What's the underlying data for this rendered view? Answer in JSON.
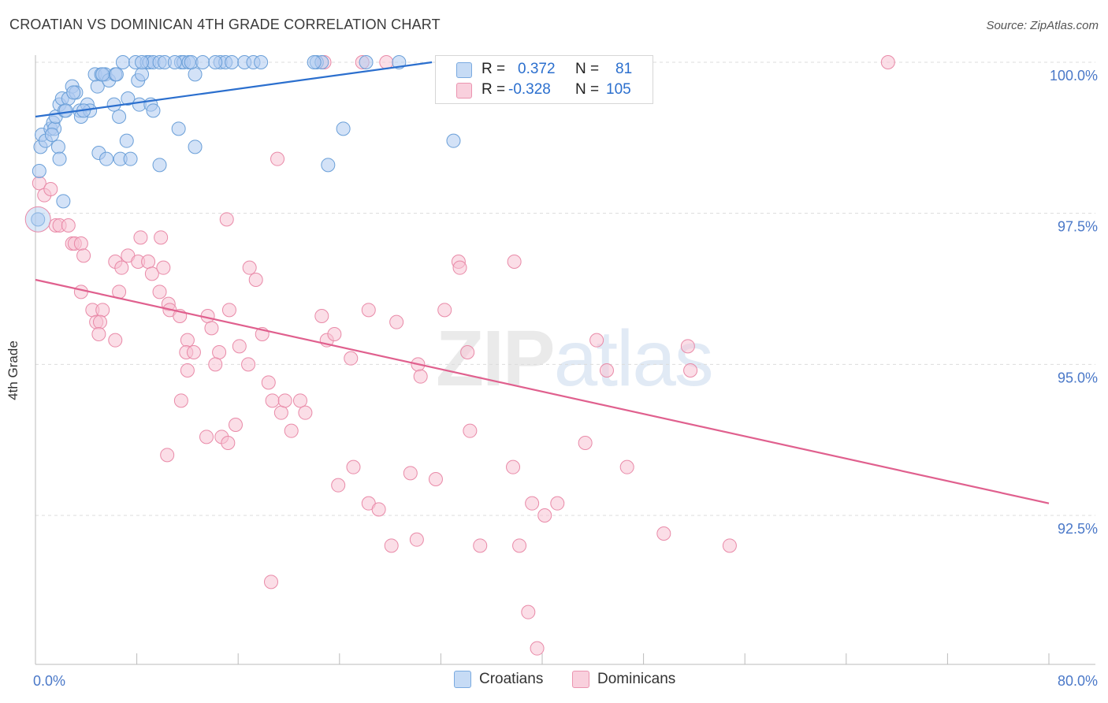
{
  "header": {
    "title": "CROATIAN VS DOMINICAN 4TH GRADE CORRELATION CHART",
    "source": "Source: ZipAtlas.com"
  },
  "watermark": {
    "zip": "ZIP",
    "atlas": "atlas"
  },
  "legend_box": {
    "rows": [
      {
        "r_label": "R =",
        "r_value": "0.372",
        "n_label": "N =",
        "n_value": "81"
      },
      {
        "r_label": "R =",
        "r_value": "-0.328",
        "n_label": "N =",
        "n_value": "105"
      }
    ]
  },
  "bottom_legend": {
    "items": [
      "Croatians",
      "Dominicans"
    ]
  },
  "colors": {
    "croatians_fill": "#aecbf0",
    "croatians_stroke": "#6a9fd8",
    "croatians_line": "#2b6fce",
    "dominicans_fill": "#f7c3d3",
    "dominicans_stroke": "#e98aa8",
    "dominicans_line": "#e0608e",
    "tick_label": "#4a78c8",
    "grid": "#dcdcdc"
  },
  "chart_data": {
    "type": "scatter",
    "title": "CROATIAN VS DOMINICAN 4TH GRADE CORRELATION CHART",
    "xlabel": "",
    "ylabel": "4th Grade",
    "xlim": [
      0,
      80
    ],
    "ylim": [
      90.0,
      100.3
    ],
    "x_tick_labels": [
      "0.0%",
      "80.0%"
    ],
    "y_ticks": [
      92.5,
      95.0,
      97.5,
      100.0
    ],
    "y_tick_labels": [
      "92.5%",
      "95.0%",
      "97.5%",
      "100.0%"
    ],
    "grid": true,
    "legend_position": "top-center",
    "series": [
      {
        "name": "Croatians",
        "r": 0.372,
        "n": 81,
        "trend": {
          "x": [
            0,
            31.3
          ],
          "y": [
            99.1,
            100.0
          ]
        },
        "points": [
          [
            0.2,
            97.4
          ],
          [
            0.3,
            98.2
          ],
          [
            0.4,
            98.6
          ],
          [
            0.5,
            98.8
          ],
          [
            0.8,
            98.7
          ],
          [
            1.2,
            98.9
          ],
          [
            1.4,
            99.0
          ],
          [
            1.5,
            98.9
          ],
          [
            1.6,
            99.1
          ],
          [
            1.8,
            98.6
          ],
          [
            1.9,
            98.4
          ],
          [
            2.2,
            97.7
          ],
          [
            1.9,
            99.3
          ],
          [
            2.3,
            99.2
          ],
          [
            2.1,
            99.4
          ],
          [
            2.6,
            99.4
          ],
          [
            2.9,
            99.6
          ],
          [
            3.2,
            99.5
          ],
          [
            3.5,
            99.2
          ],
          [
            3.6,
            99.1
          ],
          [
            4.1,
            99.3
          ],
          [
            4.3,
            99.2
          ],
          [
            4.9,
            99.6
          ],
          [
            5.0,
            98.5
          ],
          [
            5.6,
            98.4
          ],
          [
            4.7,
            99.8
          ],
          [
            5.2,
            99.8
          ],
          [
            5.5,
            99.8
          ],
          [
            5.8,
            99.7
          ],
          [
            6.3,
            99.8
          ],
          [
            6.4,
            99.8
          ],
          [
            7.3,
            99.4
          ],
          [
            8.2,
            99.3
          ],
          [
            8.1,
            99.7
          ],
          [
            8.4,
            99.8
          ],
          [
            9.1,
            99.3
          ],
          [
            9.3,
            99.2
          ],
          [
            6.6,
            99.1
          ],
          [
            6.2,
            99.3
          ],
          [
            7.2,
            98.7
          ],
          [
            6.7,
            98.4
          ],
          [
            7.5,
            98.4
          ],
          [
            9.8,
            98.3
          ],
          [
            11.3,
            98.9
          ],
          [
            12.6,
            98.6
          ],
          [
            12.6,
            99.8
          ],
          [
            6.9,
            100.0
          ],
          [
            7.9,
            100.0
          ],
          [
            8.8,
            100.0
          ],
          [
            9.0,
            100.0
          ],
          [
            9.3,
            100.0
          ],
          [
            9.8,
            100.0
          ],
          [
            10.2,
            100.0
          ],
          [
            11.5,
            100.0
          ],
          [
            11.7,
            100.0
          ],
          [
            12.1,
            100.0
          ],
          [
            12.3,
            100.0
          ],
          [
            13.2,
            100.0
          ],
          [
            14.6,
            100.0
          ],
          [
            15.0,
            100.0
          ],
          [
            15.5,
            100.0
          ],
          [
            16.5,
            100.0
          ],
          [
            17.2,
            100.0
          ],
          [
            17.8,
            100.0
          ],
          [
            22.2,
            100.0
          ],
          [
            22.6,
            100.0
          ],
          [
            26.1,
            100.0
          ],
          [
            28.7,
            100.0
          ],
          [
            24.3,
            98.9
          ],
          [
            23.1,
            98.3
          ],
          [
            33.0,
            98.7
          ],
          [
            36.6,
            100.0
          ],
          [
            8.4,
            100.0
          ],
          [
            11.0,
            100.0
          ],
          [
            14.2,
            100.0
          ],
          [
            22.0,
            100.0
          ],
          [
            3.8,
            99.2
          ],
          [
            2.4,
            99.2
          ],
          [
            3.0,
            99.5
          ],
          [
            1.3,
            98.8
          ],
          [
            5.3,
            99.8
          ]
        ]
      },
      {
        "name": "Dominicans",
        "r": -0.328,
        "n": 105,
        "trend": {
          "x": [
            0,
            80
          ],
          "y": [
            96.4,
            92.7
          ]
        },
        "points": [
          [
            0.3,
            98.0
          ],
          [
            0.7,
            97.8
          ],
          [
            1.2,
            97.9
          ],
          [
            1.6,
            97.3
          ],
          [
            1.9,
            97.3
          ],
          [
            2.6,
            97.3
          ],
          [
            2.9,
            97.0
          ],
          [
            3.1,
            97.0
          ],
          [
            3.6,
            97.0
          ],
          [
            3.8,
            96.8
          ],
          [
            3.6,
            96.2
          ],
          [
            4.5,
            95.9
          ],
          [
            5.3,
            95.9
          ],
          [
            4.8,
            95.7
          ],
          [
            6.6,
            96.2
          ],
          [
            5.1,
            95.7
          ],
          [
            6.3,
            96.7
          ],
          [
            6.8,
            96.6
          ],
          [
            7.3,
            96.8
          ],
          [
            8.1,
            96.7
          ],
          [
            8.3,
            97.1
          ],
          [
            8.9,
            96.7
          ],
          [
            9.2,
            96.5
          ],
          [
            10.1,
            96.6
          ],
          [
            9.8,
            96.2
          ],
          [
            10.5,
            96.0
          ],
          [
            10.6,
            95.9
          ],
          [
            11.4,
            95.8
          ],
          [
            12.0,
            95.4
          ],
          [
            11.9,
            95.2
          ],
          [
            12.5,
            95.2
          ],
          [
            13.6,
            95.8
          ],
          [
            13.9,
            95.6
          ],
          [
            14.5,
            95.2
          ],
          [
            14.2,
            95.0
          ],
          [
            15.3,
            95.9
          ],
          [
            16.1,
            95.3
          ],
          [
            16.8,
            95.0
          ],
          [
            17.4,
            96.4
          ],
          [
            17.9,
            95.5
          ],
          [
            18.4,
            94.7
          ],
          [
            18.7,
            94.4
          ],
          [
            19.4,
            94.2
          ],
          [
            19.7,
            94.4
          ],
          [
            20.9,
            94.4
          ],
          [
            21.3,
            94.2
          ],
          [
            22.6,
            95.8
          ],
          [
            23.0,
            95.4
          ],
          [
            23.6,
            95.5
          ],
          [
            24.9,
            95.1
          ],
          [
            26.3,
            95.9
          ],
          [
            28.5,
            95.7
          ],
          [
            30.2,
            95.0
          ],
          [
            30.4,
            94.8
          ],
          [
            32.3,
            95.9
          ],
          [
            33.4,
            96.7
          ],
          [
            33.5,
            96.6
          ],
          [
            34.1,
            95.2
          ],
          [
            37.8,
            96.7
          ],
          [
            44.3,
            95.4
          ],
          [
            45.1,
            94.9
          ],
          [
            51.5,
            95.3
          ],
          [
            51.7,
            94.9
          ],
          [
            5.0,
            95.5
          ],
          [
            6.3,
            95.4
          ],
          [
            11.5,
            94.4
          ],
          [
            12.0,
            94.9
          ],
          [
            13.5,
            93.8
          ],
          [
            14.7,
            93.8
          ],
          [
            15.2,
            93.7
          ],
          [
            15.8,
            94.0
          ],
          [
            10.4,
            93.5
          ],
          [
            20.2,
            93.9
          ],
          [
            23.9,
            93.0
          ],
          [
            25.1,
            93.3
          ],
          [
            26.3,
            92.7
          ],
          [
            27.1,
            92.6
          ],
          [
            28.1,
            92.0
          ],
          [
            29.6,
            93.2
          ],
          [
            30.1,
            92.1
          ],
          [
            31.6,
            93.1
          ],
          [
            34.3,
            93.9
          ],
          [
            35.1,
            92.0
          ],
          [
            37.7,
            93.3
          ],
          [
            38.2,
            92.0
          ],
          [
            39.2,
            92.7
          ],
          [
            40.2,
            92.5
          ],
          [
            41.2,
            92.7
          ],
          [
            43.4,
            93.7
          ],
          [
            46.7,
            93.3
          ],
          [
            49.6,
            92.2
          ],
          [
            54.8,
            92.0
          ],
          [
            18.6,
            91.4
          ],
          [
            38.9,
            90.9
          ],
          [
            39.6,
            90.3
          ],
          [
            22.8,
            100.0
          ],
          [
            25.8,
            100.0
          ],
          [
            27.7,
            100.0
          ],
          [
            32.9,
            100.0
          ],
          [
            42.3,
            100.0
          ],
          [
            67.3,
            100.0
          ],
          [
            19.1,
            98.4
          ],
          [
            16.9,
            96.6
          ],
          [
            15.1,
            97.4
          ],
          [
            9.9,
            97.1
          ]
        ]
      }
    ]
  }
}
